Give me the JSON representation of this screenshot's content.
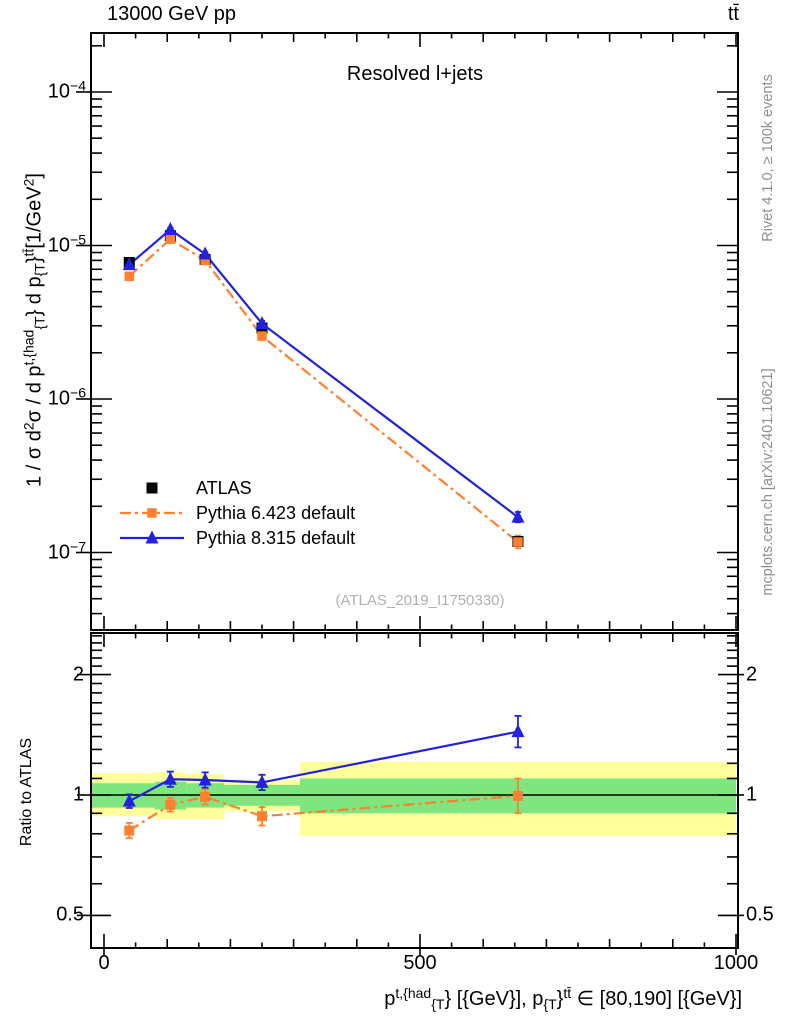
{
  "header": {
    "left": "13000 GeV pp",
    "right": "tt̄"
  },
  "side_notes": {
    "top": "Rivet 4.1.0, ≥ 100k events",
    "bottom": "mcplots.cern.ch [arXiv:2401.10621]"
  },
  "watermark": "(ATLAS_2019_I1750330)",
  "colors": {
    "atlas": "#000000",
    "pythia6": "#ff8030",
    "pythia8": "#2222dd",
    "band_green": "#7fe57f",
    "band_yellow": "#ffff9b",
    "note_gray": "#8f8f8f",
    "watermark_gray": "#b0b0b0"
  },
  "chart_data": {
    "type": "line",
    "title": "Resolved l+jets",
    "x_axis": {
      "ticks": [
        0,
        500,
        1000
      ],
      "minor_step": 50,
      "medium_step": 100,
      "range_gev": [
        -20,
        1003
      ],
      "label_segments": [
        {
          "t": "p",
          "f": "n"
        },
        {
          "t": "t,{had",
          "f": "sup"
        },
        {
          "t": "{T",
          "f": "sub"
        },
        {
          "t": "} [{GeV}], p",
          "f": "n"
        },
        {
          "t": "{T",
          "f": "sub"
        },
        {
          "t": "}",
          "f": "n"
        },
        {
          "t": "tt̄",
          "f": "sup"
        },
        {
          "t": " ∈ [80,190] [{GeV}]",
          "f": "n"
        }
      ]
    },
    "y_axis_main": {
      "scale": "log",
      "tick_exponents": [
        -4,
        -5,
        -6,
        -7
      ],
      "range": [
        3.1e-08,
        0.00024
      ],
      "label_segments": [
        {
          "t": "1 / σ d",
          "f": "n"
        },
        {
          "t": "2",
          "f": "sup"
        },
        {
          "t": "σ / d p",
          "f": "n"
        },
        {
          "t": "t,{had",
          "f": "sup"
        },
        {
          "t": "{T",
          "f": "sub"
        },
        {
          "t": "} d p",
          "f": "n"
        },
        {
          "t": "{T",
          "f": "sub"
        },
        {
          "t": "}",
          "f": "n"
        },
        {
          "t": "tt̄",
          "f": "sup"
        },
        {
          "t": "[1/GeV",
          "f": "n"
        },
        {
          "t": "2",
          "f": "sup"
        },
        {
          "t": "]",
          "f": "n"
        }
      ]
    },
    "y_axis_ratio": {
      "scale": "log",
      "label": "Ratio to ATLAS",
      "ticks": [
        2,
        1,
        0.5
      ],
      "range": [
        0.42,
        2.54
      ]
    },
    "bin_edges_gev": [
      0,
      80,
      130,
      190,
      310,
      1000
    ],
    "points_x_gev": [
      40,
      105,
      160,
      250,
      655
    ],
    "series": [
      {
        "name": "ATLAS",
        "marker": "square",
        "color": "#000000",
        "line": "none",
        "values": [
          7.75e-06,
          1.16e-05,
          8.1e-06,
          2.9e-06,
          1.18e-07
        ],
        "yerr_rel": [
          0.03,
          0.02,
          0.02,
          0.03,
          0.05
        ]
      },
      {
        "name": "Pythia 6.423 default",
        "marker": "square",
        "color": "#ff8030",
        "line": "dashdot",
        "values": [
          6.3e-06,
          1.1e-05,
          8e-06,
          2.57e-06,
          1.17e-07
        ],
        "yerr_rel": [
          0.04,
          0.03,
          0.03,
          0.04,
          0.1
        ],
        "ratio": [
          0.815,
          0.945,
          0.99,
          0.885,
          0.995
        ],
        "ratio_err": [
          0.045,
          0.04,
          0.045,
          0.055,
          0.105
        ]
      },
      {
        "name": "Pythia 8.315 default",
        "marker": "triangle",
        "color": "#2222dd",
        "line": "solid",
        "values": [
          7.5e-06,
          1.27e-05,
          8.8e-06,
          3.1e-06,
          1.7e-07
        ],
        "yerr_rel": [
          0.04,
          0.03,
          0.03,
          0.04,
          0.08
        ],
        "ratio": [
          0.965,
          1.095,
          1.09,
          1.075,
          1.44
        ],
        "ratio_err": [
          0.04,
          0.045,
          0.045,
          0.045,
          0.095
        ]
      }
    ],
    "ratio_bands": {
      "green": [
        [
          0.93,
          1.07
        ],
        [
          0.92,
          1.08
        ],
        [
          0.93,
          1.07
        ],
        [
          0.94,
          1.06
        ],
        [
          0.9,
          1.1
        ]
      ],
      "yellow": [
        [
          0.885,
          1.135
        ],
        [
          0.87,
          1.14
        ],
        [
          0.87,
          1.13
        ],
        [
          0.91,
          1.09
        ],
        [
          0.79,
          1.21
        ]
      ]
    }
  }
}
